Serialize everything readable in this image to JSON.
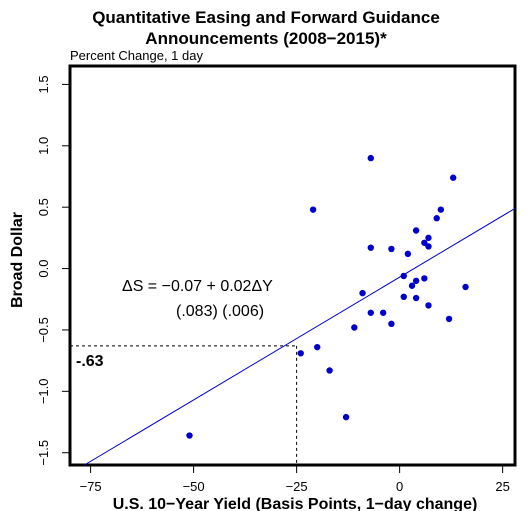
{
  "chart_data": {
    "type": "scatter",
    "title_line1": "Quantitative Easing and Forward Guidance",
    "title_line2": "Announcements (2008−2015)*",
    "subtitle": "Percent Change, 1 day",
    "xlabel": "U.S. 10−Year Yield (Basis Points, 1−day change)",
    "ylabel": "Broad Dollar",
    "xlim": [
      -80,
      28
    ],
    "ylim": [
      -1.6,
      1.65
    ],
    "xticks": [
      -75,
      -50,
      -25,
      0,
      25
    ],
    "xtick_labels": [
      "−75",
      "−50",
      "−25",
      "0",
      "25"
    ],
    "yticks": [
      -1.5,
      -1.0,
      -0.5,
      0.0,
      0.5,
      1.0,
      1.5
    ],
    "ytick_labels": [
      "−1.5",
      "−1.0",
      "−0.5",
      "0.0",
      "0.5",
      "1.0",
      "1.5"
    ],
    "grid": false,
    "point_color": "#0000cc",
    "line_color": "#0000cc",
    "points": [
      {
        "x": -51,
        "y": -1.36
      },
      {
        "x": -24,
        "y": -0.69
      },
      {
        "x": -21,
        "y": 0.48
      },
      {
        "x": -20,
        "y": -0.64
      },
      {
        "x": -17,
        "y": -0.83
      },
      {
        "x": -13,
        "y": -1.21
      },
      {
        "x": -11,
        "y": -0.48
      },
      {
        "x": -9,
        "y": -0.2
      },
      {
        "x": -7,
        "y": 0.9
      },
      {
        "x": -7,
        "y": 0.17
      },
      {
        "x": -7,
        "y": -0.36
      },
      {
        "x": -4,
        "y": -0.36
      },
      {
        "x": -2,
        "y": 0.16
      },
      {
        "x": -2,
        "y": -0.45
      },
      {
        "x": 1,
        "y": -0.06
      },
      {
        "x": 1,
        "y": -0.23
      },
      {
        "x": 2,
        "y": 0.12
      },
      {
        "x": 3,
        "y": -0.14
      },
      {
        "x": 4,
        "y": 0.31
      },
      {
        "x": 4,
        "y": -0.1
      },
      {
        "x": 4,
        "y": -0.24
      },
      {
        "x": 6,
        "y": 0.21
      },
      {
        "x": 6,
        "y": -0.08
      },
      {
        "x": 7,
        "y": 0.25
      },
      {
        "x": 7,
        "y": 0.18
      },
      {
        "x": 7,
        "y": -0.3
      },
      {
        "x": 9,
        "y": 0.41
      },
      {
        "x": 10,
        "y": 0.48
      },
      {
        "x": 12,
        "y": -0.41
      },
      {
        "x": 13,
        "y": 0.74
      },
      {
        "x": 16,
        "y": -0.15
      }
    ],
    "regression": {
      "intercept": -0.07,
      "slope": 0.02
    },
    "equation_text": "ΔS = −0.07 + 0.02ΔY",
    "se_text": "(.083)  (.006)",
    "reference": {
      "x": -25,
      "y": -0.63,
      "label": "-.63"
    }
  }
}
